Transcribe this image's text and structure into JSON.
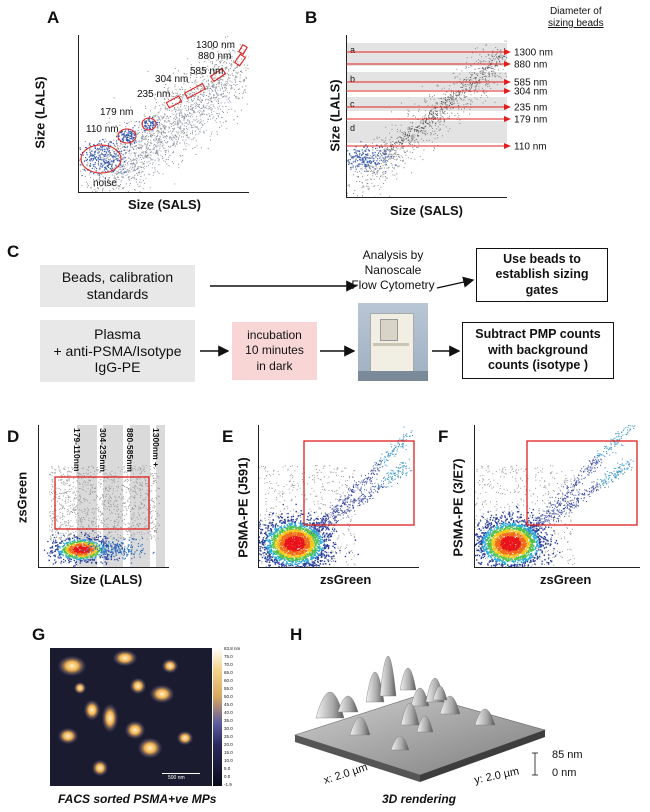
{
  "panels": {
    "A": {
      "label": "A",
      "xlabel": "Size (SALS)",
      "ylabel": "Size (LALS)",
      "annotations": [
        "1300 nm",
        "880 nm",
        "585 nm",
        "304 nm",
        "235 nm",
        "179 nm",
        "110 nm",
        "noise"
      ]
    },
    "B": {
      "label": "B",
      "xlabel": "Size (SALS)",
      "ylabel": "Size (LALS)",
      "header_line1": "Diameter of",
      "header_line2": "sizing beads",
      "bands": [
        "a",
        "b",
        "c",
        "d"
      ],
      "lines": [
        "1300 nm",
        "880 nm",
        "585 nm",
        "304 nm",
        "235 nm",
        "179 nm",
        "110 nm"
      ]
    },
    "C": {
      "label": "C",
      "beads": "Beads, calibration standards",
      "plasma_line1": "Plasma",
      "plasma_line2": "+ anti-PSMA/Isotype",
      "plasma_line3": "IgG-PE",
      "incubation_line1": "incubation",
      "incubation_line2": "10 minutes",
      "incubation_line3": "in dark",
      "analysis_line1": "Analysis by",
      "analysis_line2": "Nanoscale",
      "analysis_line3": "Flow Cytometry",
      "out1_line1": "Use beads to",
      "out1_line2": "establish sizing",
      "out1_line3": "gates",
      "out2_line1": "Subtract PMP counts",
      "out2_line2": "with background",
      "out2_line3": "counts (isotype )"
    },
    "D": {
      "label": "D",
      "xlabel": "Size (LALS)",
      "ylabel": "zsGreen",
      "gates": [
        "179-110nm",
        "304-235nm",
        "880-585nm",
        "1300nm +"
      ]
    },
    "E": {
      "label": "E",
      "xlabel": "zsGreen",
      "ylabel": "PSMA-PE (J591)"
    },
    "F": {
      "label": "F",
      "xlabel": "zsGreen",
      "ylabel": "PSMA-PE (3/E7)"
    },
    "G": {
      "label": "G",
      "caption": "FACS sorted PSMA+ve MPs",
      "colorbar_ticks": [
        "83.8 nm",
        "75.0",
        "70.0",
        "65.0",
        "60.0",
        "55.0",
        "50.0",
        "45.0",
        "40.0",
        "35.0",
        "30.0",
        "25.0",
        "20.0",
        "15.0",
        "10.0",
        "5.0",
        "0.0",
        "-1.9"
      ],
      "scalebar": "500 nm"
    },
    "H": {
      "label": "H",
      "caption": "3D rendering",
      "z_top": "85 nm",
      "z_bottom": "0 nm",
      "x_axis": "x: 2.0 µm",
      "y_axis": "y: 2.0 µm"
    }
  },
  "colors": {
    "gate_red": "#e02020",
    "band_gray": "#e3e3e3",
    "pink_box": "#f8d6d6",
    "afm_bg": "#1a1b2e",
    "afm_peak": "#f0b050"
  }
}
